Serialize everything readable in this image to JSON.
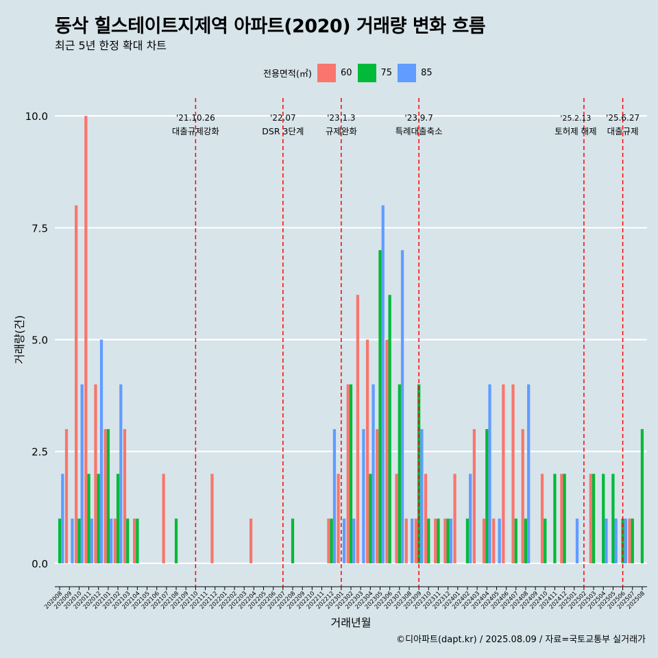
{
  "chart_data": {
    "type": "bar",
    "title": "동삭 힐스테이트지제역 아파트(2020) 거래량 변화 흐름",
    "subtitle": "최근 5년 한정 확대 차트",
    "xlabel": "거래년월",
    "ylabel": "거래량(건)",
    "ylim": [
      -0.4,
      10.4
    ],
    "yticks": [
      "0.0",
      "2.5",
      "5.0",
      "7.5",
      "10.0"
    ],
    "grid": true,
    "legend": {
      "title": "전용면적(㎡)",
      "position": "top",
      "entries": [
        {
          "name": "60",
          "color": "#F8766D"
        },
        {
          "name": "75",
          "color": "#00BA38"
        },
        {
          "name": "85",
          "color": "#619CFF"
        }
      ]
    },
    "categories": [
      "202008",
      "202009",
      "202010",
      "202011",
      "202012",
      "202101",
      "202102",
      "202103",
      "202104",
      "202105",
      "202106",
      "202107",
      "202108",
      "202109",
      "202110",
      "202111",
      "202112",
      "202201",
      "202202",
      "202203",
      "202204",
      "202205",
      "202206",
      "202207",
      "202208",
      "202209",
      "202210",
      "202211",
      "202212",
      "202301",
      "202302",
      "202303",
      "202304",
      "202305",
      "202306",
      "202307",
      "202308",
      "202309",
      "202310",
      "202311",
      "202312",
      "202401",
      "202402",
      "202403",
      "202404",
      "202405",
      "202406",
      "202407",
      "202408",
      "202409",
      "202410",
      "202411",
      "202412",
      "202501",
      "202502",
      "202503",
      "202504",
      "202505",
      "202506",
      "202507",
      "202508"
    ],
    "series": [
      {
        "name": "60",
        "color": "#F8766D",
        "values": [
          0,
          3,
          8,
          10,
          4,
          3,
          1,
          3,
          1,
          0,
          0,
          2,
          0,
          0,
          0,
          0,
          2,
          0,
          0,
          0,
          1,
          0,
          0,
          0,
          0,
          0,
          0,
          0,
          1,
          2,
          4,
          6,
          5,
          3,
          5,
          2,
          1,
          1,
          2,
          1,
          1,
          2,
          0,
          3,
          1,
          1,
          4,
          4,
          3,
          0,
          2,
          0,
          2,
          0,
          0,
          2,
          0,
          0,
          0,
          1,
          0
        ]
      },
      {
        "name": "75",
        "color": "#00BA38",
        "values": [
          1,
          0,
          1,
          2,
          2,
          3,
          2,
          1,
          1,
          0,
          0,
          0,
          1,
          0,
          0,
          0,
          0,
          0,
          0,
          0,
          0,
          0,
          0,
          0,
          1,
          0,
          0,
          0,
          1,
          0,
          4,
          0,
          2,
          7,
          6,
          4,
          0,
          4,
          1,
          1,
          1,
          0,
          1,
          0,
          3,
          0,
          0,
          1,
          1,
          0,
          1,
          2,
          2,
          0,
          0,
          2,
          2,
          2,
          1,
          1,
          3
        ]
      },
      {
        "name": "85",
        "color": "#619CFF",
        "values": [
          2,
          1,
          4,
          1,
          5,
          1,
          4,
          0,
          0,
          0,
          0,
          0,
          0,
          0,
          0,
          0,
          0,
          0,
          0,
          0,
          0,
          0,
          0,
          0,
          0,
          0,
          0,
          0,
          3,
          1,
          1,
          3,
          4,
          8,
          0,
          7,
          1,
          3,
          0,
          0,
          1,
          0,
          2,
          0,
          4,
          1,
          0,
          0,
          4,
          0,
          0,
          0,
          0,
          1,
          0,
          0,
          1,
          1,
          1,
          0,
          0
        ]
      }
    ],
    "annotations": [
      {
        "x": "202110",
        "line1": "'21.10.26",
        "line2": "대출규제강화"
      },
      {
        "x": "202207",
        "line1": "'22.07",
        "line2": "DSR 3단계"
      },
      {
        "x": "202301",
        "line1": "'23.1.3",
        "line2": "규제완화"
      },
      {
        "x": "202309",
        "line1": "'23.9.7",
        "line2": "특례대출축소"
      },
      {
        "x": "202502",
        "line1": "'25.2.13",
        "line2": "토허제 해제"
      },
      {
        "x": "202506",
        "line1": "'25.6.27",
        "line2": "대출규제"
      }
    ],
    "caption": "©디아파트(dapt.kr) / 2025.08.09 / 자료=국토교통부 실거래가"
  }
}
